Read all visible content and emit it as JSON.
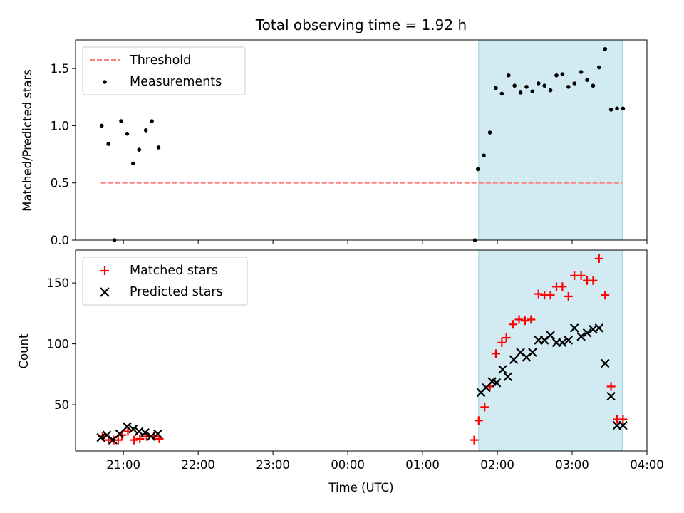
{
  "figure": {
    "title": "Total observing time = 1.92 h",
    "xlabel": "Time (UTC)",
    "x_tick_labels": [
      "21:00",
      "22:00",
      "23:00",
      "00:00",
      "01:00",
      "02:00",
      "03:00",
      "04:00"
    ],
    "x_ticks_hours": [
      21,
      22,
      23,
      24,
      25,
      26,
      27,
      28
    ],
    "xlim_hours": [
      20.36,
      28.0
    ]
  },
  "chart_data": [
    {
      "type": "scatter",
      "ylabel": "Matched/Predicted stars",
      "ylim": [
        0,
        1.75
      ],
      "y_ticks": [
        0.0,
        0.5,
        1.0,
        1.5
      ],
      "y_tick_labels": [
        "0.0",
        "0.5",
        "1.0",
        "1.5"
      ],
      "legend_position": "top-left",
      "highlight_span_hours": [
        25.75,
        27.67
      ],
      "highlight_color": "#add8e6",
      "threshold": {
        "name": "Threshold",
        "y": 0.5,
        "x_range_hours": [
          20.7,
          27.67
        ],
        "color": "#ff7f7f"
      },
      "series": [
        {
          "name": "Measurements",
          "marker": "dot",
          "color": "#000000",
          "x_hours": [
            20.71,
            20.8,
            20.88,
            20.97,
            21.05,
            21.13,
            21.21,
            21.3,
            21.38,
            21.47,
            25.7,
            25.74,
            25.82,
            25.9,
            25.98,
            26.06,
            26.15,
            26.23,
            26.31,
            26.39,
            26.47,
            26.55,
            26.63,
            26.71,
            26.79,
            26.87,
            26.95,
            27.03,
            27.12,
            27.2,
            27.28,
            27.36,
            27.44,
            27.52,
            27.6,
            27.68
          ],
          "y": [
            1.0,
            0.84,
            0.0,
            1.04,
            0.93,
            0.67,
            0.79,
            0.96,
            1.04,
            0.81,
            0.0,
            0.62,
            0.74,
            0.94,
            1.33,
            1.28,
            1.44,
            1.35,
            1.29,
            1.34,
            1.3,
            1.37,
            1.35,
            1.31,
            1.44,
            1.45,
            1.34,
            1.37,
            1.47,
            1.4,
            1.35,
            1.51,
            1.67,
            1.14,
            1.15,
            1.15
          ]
        }
      ]
    },
    {
      "type": "scatter",
      "ylabel": "Count",
      "ylim": [
        12,
        177
      ],
      "y_ticks": [
        50,
        100,
        150
      ],
      "y_tick_labels": [
        "50",
        "100",
        "150"
      ],
      "legend_position": "top-left",
      "highlight_span_hours": [
        25.75,
        27.67
      ],
      "highlight_color": "#add8e6",
      "series": [
        {
          "name": "Matched stars",
          "marker": "plus",
          "color": "#ff0000",
          "x_hours": [
            20.72,
            20.8,
            20.87,
            20.93,
            20.98,
            21.06,
            21.14,
            21.22,
            21.31,
            21.41,
            21.48,
            25.69,
            25.75,
            25.83,
            25.9,
            25.98,
            26.06,
            26.12,
            26.21,
            26.29,
            26.37,
            26.45,
            26.55,
            26.63,
            26.71,
            26.79,
            26.87,
            26.95,
            27.03,
            27.12,
            27.2,
            27.28,
            27.36,
            27.44,
            27.52,
            27.6,
            27.68
          ],
          "y": [
            24,
            21,
            21,
            21,
            25,
            28,
            21,
            22,
            24,
            24,
            22,
            21,
            37,
            48,
            65,
            92,
            101,
            105,
            116,
            120,
            119,
            120,
            141,
            140,
            140,
            147,
            147,
            139,
            156,
            156,
            152,
            152,
            170,
            140,
            65,
            38,
            38
          ]
        },
        {
          "name": "Predicted stars",
          "marker": "x",
          "color": "#000000",
          "x_hours": [
            20.7,
            20.78,
            20.86,
            20.95,
            21.05,
            21.13,
            21.21,
            21.29,
            21.37,
            21.46,
            25.78,
            25.85,
            25.93,
            25.99,
            26.07,
            26.14,
            26.22,
            26.31,
            26.39,
            26.47,
            26.55,
            26.63,
            26.71,
            26.79,
            26.87,
            26.95,
            27.03,
            27.12,
            27.2,
            27.28,
            27.36,
            27.44,
            27.52,
            27.6,
            27.68
          ],
          "y": [
            23,
            25,
            21,
            26,
            32,
            30,
            28,
            27,
            24,
            26,
            60,
            64,
            69,
            68,
            79,
            73,
            87,
            93,
            89,
            93,
            103,
            103,
            107,
            101,
            101,
            103,
            113,
            106,
            109,
            112,
            113,
            84,
            57,
            33,
            33
          ]
        }
      ]
    }
  ]
}
